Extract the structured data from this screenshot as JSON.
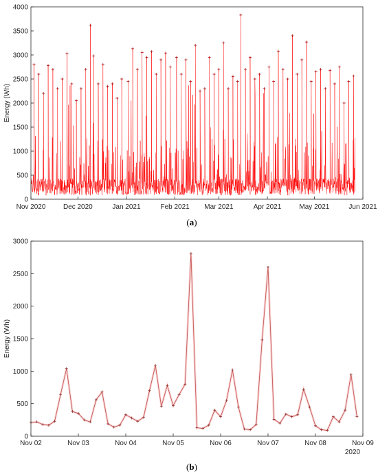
{
  "chart_data": [
    {
      "panel": "(a)",
      "panel_letter": "a",
      "type": "line",
      "ylabel": "Energy (Wh)",
      "xlabel": "",
      "ylim": [
        0,
        4000
      ],
      "yticks": [
        "0",
        "500",
        "1000",
        "1500",
        "2000",
        "2500",
        "3000",
        "3500",
        "4000"
      ],
      "xlim": [
        "2020-11-01",
        "2021-06-01"
      ],
      "xticks": [
        "Nov 2020",
        "Dec 2020",
        "Jan 2021",
        "Feb 2021",
        "Mar 2021",
        "Apr 2021",
        "May 2021",
        "Jun 2021"
      ],
      "grid": false,
      "line_color": "#ff0000",
      "marker": "+",
      "description_of_series": "hourly energy, Nov 2020 to late May 2021",
      "series": [
        {
          "values": [
            {
              "date": "2020-11-03",
              "y": 2800
            },
            {
              "date": "2020-11-06",
              "y": 2600
            },
            {
              "date": "2020-11-09",
              "y": 2200
            },
            {
              "date": "2020-11-12",
              "y": 2780
            },
            {
              "date": "2020-11-15",
              "y": 2700
            },
            {
              "date": "2020-11-18",
              "y": 2300
            },
            {
              "date": "2020-11-21",
              "y": 2500
            },
            {
              "date": "2020-11-24",
              "y": 3030
            },
            {
              "date": "2020-11-27",
              "y": 2400
            },
            {
              "date": "2020-11-30",
              "y": 2050
            },
            {
              "date": "2020-12-03",
              "y": 2300
            },
            {
              "date": "2020-12-06",
              "y": 2700
            },
            {
              "date": "2020-12-09",
              "y": 3620
            },
            {
              "date": "2020-12-11",
              "y": 2980
            },
            {
              "date": "2020-12-14",
              "y": 2400
            },
            {
              "date": "2020-12-17",
              "y": 2800
            },
            {
              "date": "2020-12-20",
              "y": 2350
            },
            {
              "date": "2020-12-23",
              "y": 2400
            },
            {
              "date": "2020-12-26",
              "y": 2100
            },
            {
              "date": "2020-12-29",
              "y": 2500
            },
            {
              "date": "2021-01-02",
              "y": 2450
            },
            {
              "date": "2021-01-05",
              "y": 3130
            },
            {
              "date": "2021-01-08",
              "y": 2700
            },
            {
              "date": "2021-01-11",
              "y": 3050
            },
            {
              "date": "2021-01-14",
              "y": 2950
            },
            {
              "date": "2021-01-17",
              "y": 3070
            },
            {
              "date": "2021-01-20",
              "y": 2600
            },
            {
              "date": "2021-01-23",
              "y": 2900
            },
            {
              "date": "2021-01-26",
              "y": 3040
            },
            {
              "date": "2021-01-29",
              "y": 2750
            },
            {
              "date": "2021-02-02",
              "y": 2950
            },
            {
              "date": "2021-02-05",
              "y": 2600
            },
            {
              "date": "2021-02-08",
              "y": 2900
            },
            {
              "date": "2021-02-11",
              "y": 2450
            },
            {
              "date": "2021-02-14",
              "y": 3200
            },
            {
              "date": "2021-02-17",
              "y": 2250
            },
            {
              "date": "2021-02-20",
              "y": 2300
            },
            {
              "date": "2021-02-23",
              "y": 2950
            },
            {
              "date": "2021-02-26",
              "y": 2600
            },
            {
              "date": "2021-03-01",
              "y": 2700
            },
            {
              "date": "2021-03-04",
              "y": 3250
            },
            {
              "date": "2021-03-07",
              "y": 2300
            },
            {
              "date": "2021-03-10",
              "y": 2550
            },
            {
              "date": "2021-03-13",
              "y": 2450
            },
            {
              "date": "2021-03-15",
              "y": 3830
            },
            {
              "date": "2021-03-18",
              "y": 2700
            },
            {
              "date": "2021-03-21",
              "y": 2950
            },
            {
              "date": "2021-03-24",
              "y": 2500
            },
            {
              "date": "2021-03-27",
              "y": 2600
            },
            {
              "date": "2021-03-30",
              "y": 2300
            },
            {
              "date": "2021-04-02",
              "y": 2750
            },
            {
              "date": "2021-04-05",
              "y": 2450
            },
            {
              "date": "2021-04-08",
              "y": 3080
            },
            {
              "date": "2021-04-11",
              "y": 2700
            },
            {
              "date": "2021-04-14",
              "y": 2500
            },
            {
              "date": "2021-04-17",
              "y": 3400
            },
            {
              "date": "2021-04-20",
              "y": 2600
            },
            {
              "date": "2021-04-23",
              "y": 2900
            },
            {
              "date": "2021-04-26",
              "y": 3270
            },
            {
              "date": "2021-04-29",
              "y": 2450
            },
            {
              "date": "2021-05-02",
              "y": 2650
            },
            {
              "date": "2021-05-05",
              "y": 2700
            },
            {
              "date": "2021-05-08",
              "y": 2300
            },
            {
              "date": "2021-05-11",
              "y": 2680
            },
            {
              "date": "2021-05-14",
              "y": 2400
            },
            {
              "date": "2021-05-17",
              "y": 2750
            },
            {
              "date": "2021-05-20",
              "y": 2000
            },
            {
              "date": "2021-05-23",
              "y": 2450
            },
            {
              "date": "2021-05-26",
              "y": 2560
            }
          ]
        }
      ]
    },
    {
      "panel": "(b)",
      "panel_letter": "b",
      "type": "line",
      "ylabel": "Energy (Wh)",
      "xlabel": "",
      "ylim": [
        0,
        3000
      ],
      "yticks": [
        "0",
        "500",
        "1000",
        "1500",
        "2000",
        "2500",
        "3000"
      ],
      "xlim": [
        "2020-11-02T00:00",
        "2020-11-09T00:00"
      ],
      "xticks": [
        "Nov 02",
        "Nov 03",
        "Nov 04",
        "Nov 05",
        "Nov 06",
        "Nov 07",
        "Nov 08",
        "Nov 09"
      ],
      "x_secondary_label": "2020",
      "grid": false,
      "line_color": "#c0504d",
      "marker": "+",
      "series": [
        {
          "x_hours": [
            0,
            3,
            6,
            9,
            12,
            15,
            18,
            21,
            24,
            27,
            30,
            33,
            36,
            39,
            42,
            45,
            48,
            51,
            54,
            57,
            60,
            63,
            66,
            69,
            72,
            75,
            78,
            81,
            84,
            87,
            90,
            93,
            96,
            99,
            102,
            105,
            108,
            111,
            114,
            117,
            120,
            123,
            126,
            129,
            132,
            135,
            138,
            141,
            144,
            147,
            150,
            153,
            156,
            159,
            162,
            165
          ],
          "y": [
            210,
            220,
            180,
            170,
            230,
            640,
            1040,
            380,
            350,
            250,
            220,
            560,
            680,
            190,
            140,
            170,
            330,
            280,
            230,
            290,
            700,
            1090,
            460,
            780,
            470,
            640,
            800,
            2810,
            130,
            120,
            170,
            400,
            300,
            550,
            1020,
            450,
            110,
            100,
            180,
            1480,
            2600,
            260,
            200,
            340,
            300,
            330,
            720,
            450,
            160,
            100,
            90,
            300,
            220,
            400,
            950,
            300
          ]
        }
      ]
    }
  ]
}
